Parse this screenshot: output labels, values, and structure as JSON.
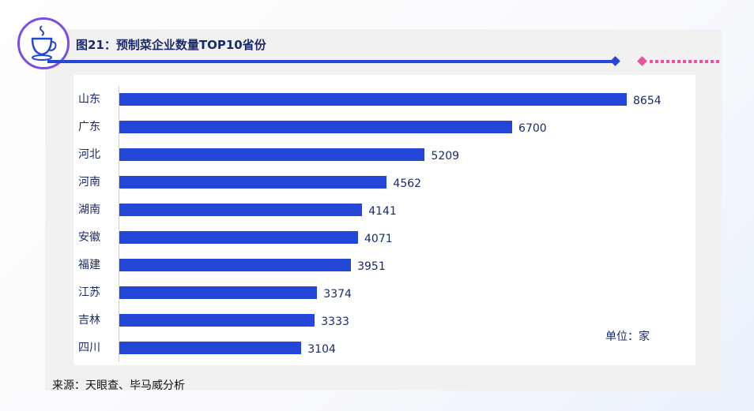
{
  "title": "图21：预制菜企业数量TOP10省份",
  "source": "来源：天眼查、毕马威分析",
  "colors": {
    "bar": "#2447d8",
    "accent_pink": "#e8559b",
    "text": "#1b2a6b"
  },
  "chart_data": {
    "type": "bar",
    "orientation": "horizontal",
    "title": "图21：预制菜企业数量TOP10省份",
    "unit_label": "单位：家",
    "categories": [
      "山东",
      "广东",
      "河北",
      "河南",
      "湖南",
      "安徽",
      "福建",
      "江苏",
      "吉林",
      "四川"
    ],
    "values": [
      8654,
      6700,
      5209,
      4562,
      4141,
      4071,
      3951,
      3374,
      3333,
      3104
    ],
    "xlim": [
      0,
      8654
    ],
    "grid": false
  }
}
